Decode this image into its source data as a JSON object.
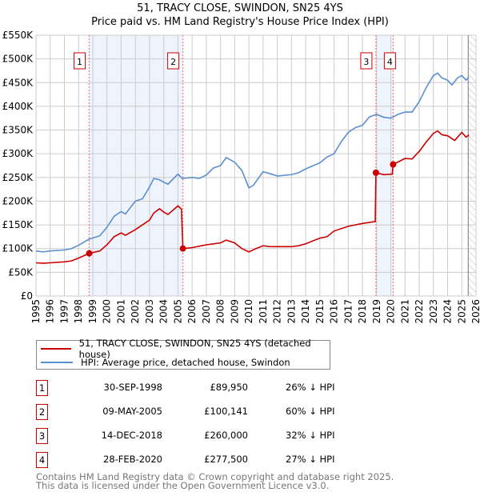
{
  "title_line1": "51, TRACY CLOSE, SWINDON, SN25 4YS",
  "title_line2": "Price paid vs. HM Land Registry's House Price Index (HPI)",
  "chart_data": {
    "type": "line",
    "title": "51, TRACY CLOSE, SWINDON, SN25 4YS — Price paid vs. HM Land Registry's House Price Index (HPI)",
    "xlim": [
      1995,
      2026
    ],
    "ylim": [
      0,
      550000
    ],
    "yticks": [
      {
        "v": 0,
        "label": "£0"
      },
      {
        "v": 50000,
        "label": "£50K"
      },
      {
        "v": 100000,
        "label": "£100K"
      },
      {
        "v": 150000,
        "label": "£150K"
      },
      {
        "v": 200000,
        "label": "£200K"
      },
      {
        "v": 250000,
        "label": "£250K"
      },
      {
        "v": 300000,
        "label": "£300K"
      },
      {
        "v": 350000,
        "label": "£350K"
      },
      {
        "v": 400000,
        "label": "£400K"
      },
      {
        "v": 450000,
        "label": "£450K"
      },
      {
        "v": 500000,
        "label": "£500K"
      },
      {
        "v": 550000,
        "label": "£550K"
      }
    ],
    "xticks": [
      "1995",
      "1996",
      "1997",
      "1998",
      "1999",
      "2000",
      "2001",
      "2002",
      "2003",
      "2004",
      "2005",
      "2006",
      "2007",
      "2008",
      "2009",
      "2010",
      "2011",
      "2012",
      "2013",
      "2014",
      "2015",
      "2016",
      "2017",
      "2018",
      "2019",
      "2020",
      "2021",
      "2022",
      "2023",
      "2024",
      "2025",
      "2026"
    ],
    "grid": true,
    "colors": {
      "property": "#cc0000",
      "hpi": "#5b8fd0",
      "shade": "#eef3fc",
      "vline": "#ff6666"
    },
    "series": [
      {
        "name": "51, TRACY CLOSE, SWINDON, SN25 4YS (detached house)",
        "color": "#cc0000",
        "x": [
          1995,
          1995.5,
          1996,
          1997,
          1997.5,
          1998,
          1998.75,
          1999.5,
          2000,
          2000.5,
          2001,
          2001.3,
          2002,
          2002.5,
          2003,
          2003.3,
          2003.7,
          2004,
          2004.3,
          2005,
          2005.25,
          2005.35,
          2006,
          2007,
          2007.5,
          2008,
          2008.4,
          2009,
          2009.5,
          2010,
          2010.5,
          2011,
          2011.5,
          2012,
          2013,
          2013.5,
          2014,
          2015,
          2015.5,
          2016,
          2017,
          2018,
          2018.9,
          2018.95,
          2019.5,
          2020.1,
          2020.16,
          2021,
          2021.5,
          2022,
          2022.5,
          2023,
          2023.3,
          2023.6,
          2024,
          2024.5,
          2025,
          2025.3,
          2025.5
        ],
        "y": [
          70000,
          69000,
          70000,
          72000,
          74000,
          80000,
          89950,
          95000,
          108000,
          125000,
          133000,
          128000,
          140000,
          150000,
          160000,
          175000,
          184000,
          177000,
          172000,
          190000,
          183000,
          100141,
          102000,
          108000,
          110000,
          112000,
          118000,
          112000,
          100000,
          93000,
          100000,
          106000,
          104000,
          104000,
          104000,
          106000,
          110000,
          122000,
          125000,
          137000,
          147000,
          153000,
          157000,
          260000,
          256000,
          257000,
          277500,
          290000,
          289000,
          305000,
          325000,
          343000,
          348000,
          340000,
          338000,
          328000,
          345000,
          335000,
          340000
        ]
      },
      {
        "name": "HPI: Average price, detached house, Swindon",
        "color": "#5b8fd0",
        "x": [
          1995,
          1995.5,
          1996,
          1997,
          1997.5,
          1998,
          1998.75,
          1999.5,
          2000,
          2000.5,
          2001,
          2001.3,
          2002,
          2002.5,
          2003,
          2003.3,
          2003.7,
          2004,
          2004.3,
          2005,
          2005.3,
          2006,
          2006.5,
          2007,
          2007.5,
          2008,
          2008.4,
          2009,
          2009.5,
          2010,
          2010.3,
          2011,
          2011.5,
          2012,
          2013,
          2013.5,
          2014,
          2015,
          2015.5,
          2016,
          2016.5,
          2017,
          2017.5,
          2018,
          2018.5,
          2019,
          2019.5,
          2020,
          2020.5,
          2021,
          2021.5,
          2022,
          2022.5,
          2023,
          2023.3,
          2023.6,
          2024,
          2024.3,
          2024.7,
          2025,
          2025.3,
          2025.5
        ],
        "y": [
          95000,
          93000,
          95000,
          97000,
          100000,
          107000,
          120000,
          127000,
          145000,
          168000,
          178000,
          173000,
          200000,
          205000,
          230000,
          248000,
          245000,
          240000,
          236000,
          257000,
          248000,
          250000,
          248000,
          255000,
          270000,
          275000,
          292000,
          282000,
          265000,
          228000,
          233000,
          262000,
          258000,
          253000,
          256000,
          260000,
          268000,
          281000,
          293000,
          300000,
          325000,
          345000,
          355000,
          360000,
          378000,
          383000,
          377000,
          375000,
          383000,
          388000,
          388000,
          410000,
          440000,
          465000,
          470000,
          460000,
          455000,
          445000,
          460000,
          465000,
          455000,
          462000
        ]
      }
    ],
    "transactions": [
      {
        "num": "1",
        "date": "30-SEP-1998",
        "x": 1998.75,
        "price": "£89,950",
        "value": 89950,
        "hpi": "26% ↓ HPI"
      },
      {
        "num": "2",
        "date": "09-MAY-2005",
        "x": 2005.35,
        "price": "£100,141",
        "value": 100141,
        "hpi": "60% ↓ HPI"
      },
      {
        "num": "3",
        "date": "14-DEC-2018",
        "x": 2018.95,
        "price": "£260,000",
        "value": 260000,
        "hpi": "32% ↓ HPI"
      },
      {
        "num": "4",
        "date": "28-FEB-2020",
        "x": 2020.16,
        "price": "£277,500",
        "value": 277500,
        "hpi": "27% ↓ HPI"
      }
    ],
    "shaded_ranges": [
      [
        1998.75,
        2005.35
      ],
      [
        2018.95,
        2020.16
      ]
    ],
    "forecast_hatch_from": 2025.45,
    "legend_placement": "below"
  },
  "legend": {
    "property": "51, TRACY CLOSE, SWINDON, SN25 4YS (detached house)",
    "hpi": "HPI: Average price, detached house, Swindon"
  },
  "footer": {
    "line1": "Contains HM Land Registry data © Crown copyright and database right 2025.",
    "line2": "This data is licensed under the Open Government Licence v3.0."
  }
}
